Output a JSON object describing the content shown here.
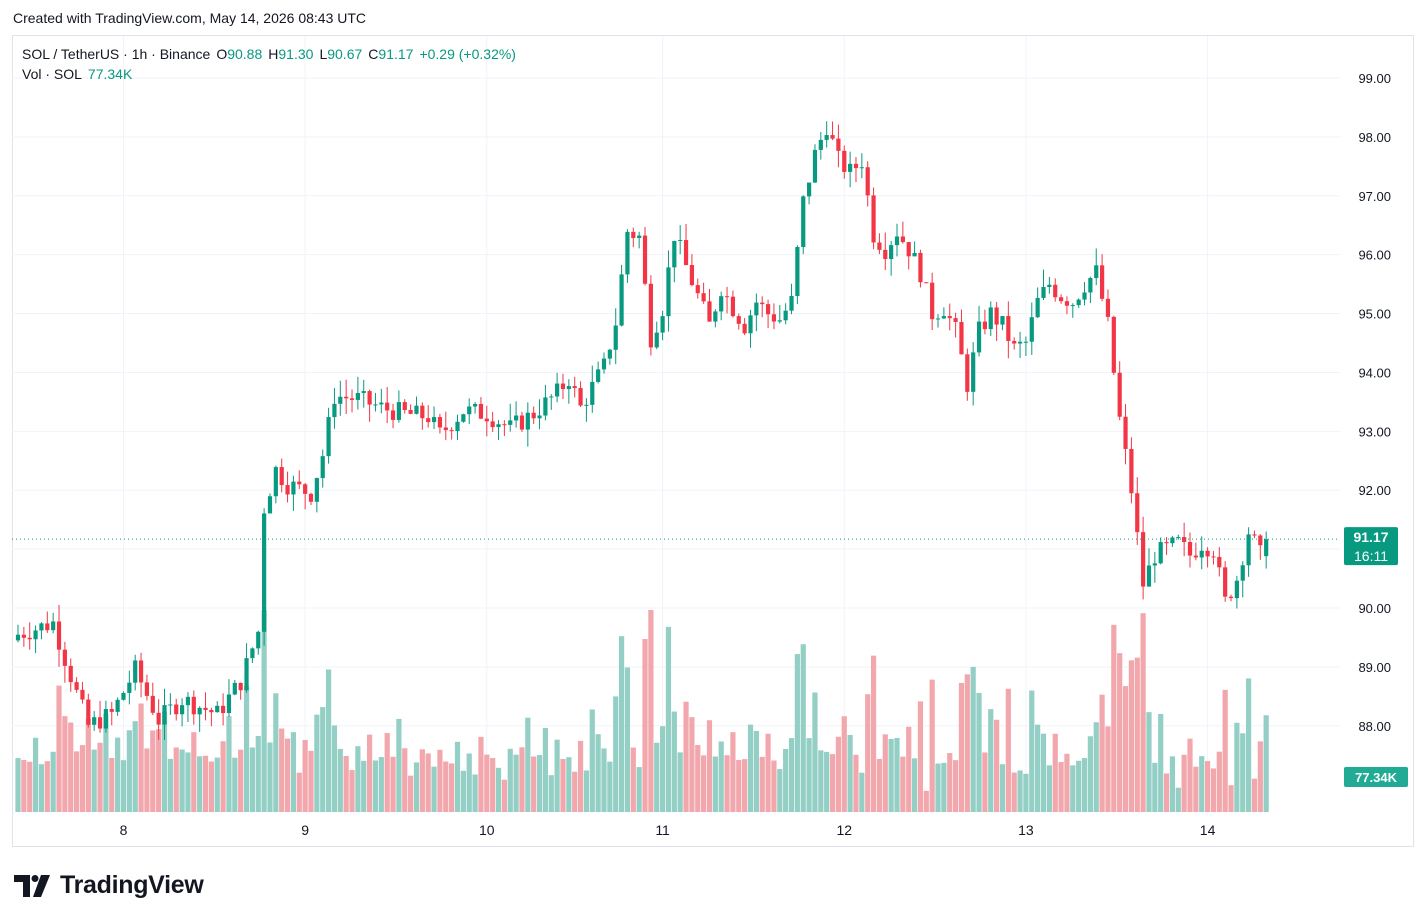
{
  "header_note": "Created with TradingView.com, May 14, 2026 08:43 UTC",
  "legend": {
    "symbol": "SOL / TetherUS · 1h · Binance",
    "open_label": "O",
    "open": "90.88",
    "high_label": "H",
    "high": "91.30",
    "low_label": "L",
    "low": "90.67",
    "close_label": "C",
    "close": "91.17",
    "change": "+0.29 (+0.32%)",
    "vol_label": "Vol · SOL",
    "vol_value": "77.34K"
  },
  "price_badge": {
    "price": "91.17",
    "countdown": "16:11"
  },
  "volume_badge": "77.34K",
  "brand": "TradingView",
  "colors": {
    "up": "#089981",
    "down": "#f23645",
    "up_volume": "#94cfc5",
    "down_volume": "#f2a7ad",
    "grid": "#f0f3fa",
    "badge": "#089981"
  },
  "chart_data": {
    "type": "candlestick",
    "symbol": "SOL / TetherUS",
    "interval": "1h",
    "y_ticks": [
      "99.00",
      "98.00",
      "97.00",
      "96.00",
      "95.00",
      "94.00",
      "93.00",
      "92.00",
      "91.00",
      "90.00",
      "89.00",
      "88.00"
    ],
    "x_ticks": [
      "8",
      "9",
      "10",
      "11",
      "12",
      "13",
      "14"
    ],
    "ylim": [
      87,
      99.6
    ],
    "last_price": 91.17,
    "close_path": [
      {
        "x": 0,
        "c": 89.55
      },
      {
        "x": 6,
        "c": 89.75
      },
      {
        "x": 10,
        "c": 88.55
      },
      {
        "x": 12,
        "c": 88.0
      },
      {
        "x": 16,
        "c": 88.2
      },
      {
        "x": 20,
        "c": 88.95
      },
      {
        "x": 24,
        "c": 88.1
      },
      {
        "x": 28,
        "c": 88.45
      },
      {
        "x": 34,
        "c": 88.2
      },
      {
        "x": 38,
        "c": 88.75
      },
      {
        "x": 41,
        "c": 89.6
      },
      {
        "x": 42,
        "c": 91.7
      },
      {
        "x": 44,
        "c": 92.35
      },
      {
        "x": 46,
        "c": 92.1
      },
      {
        "x": 50,
        "c": 91.95
      },
      {
        "x": 52,
        "c": 92.6
      },
      {
        "x": 54,
        "c": 93.6
      },
      {
        "x": 58,
        "c": 93.55
      },
      {
        "x": 62,
        "c": 93.4
      },
      {
        "x": 66,
        "c": 93.3
      },
      {
        "x": 70,
        "c": 93.25
      },
      {
        "x": 72,
        "c": 92.95
      },
      {
        "x": 76,
        "c": 93.35
      },
      {
        "x": 80,
        "c": 93.3
      },
      {
        "x": 84,
        "c": 93.05
      },
      {
        "x": 88,
        "c": 93.3
      },
      {
        "x": 92,
        "c": 93.65
      },
      {
        "x": 94,
        "c": 93.9
      },
      {
        "x": 96,
        "c": 93.4
      },
      {
        "x": 100,
        "c": 94.1
      },
      {
        "x": 102,
        "c": 94.85
      },
      {
        "x": 104,
        "c": 96.4
      },
      {
        "x": 106,
        "c": 96.3
      },
      {
        "x": 108,
        "c": 94.6
      },
      {
        "x": 110,
        "c": 95.1
      },
      {
        "x": 112,
        "c": 96.35
      },
      {
        "x": 114,
        "c": 95.8
      },
      {
        "x": 116,
        "c": 95.3
      },
      {
        "x": 118,
        "c": 94.8
      },
      {
        "x": 120,
        "c": 95.45
      },
      {
        "x": 122,
        "c": 95.1
      },
      {
        "x": 124,
        "c": 94.8
      },
      {
        "x": 126,
        "c": 95.2
      },
      {
        "x": 128,
        "c": 95.0
      },
      {
        "x": 130,
        "c": 94.9
      },
      {
        "x": 132,
        "c": 95.2
      },
      {
        "x": 134,
        "c": 96.9
      },
      {
        "x": 136,
        "c": 97.7
      },
      {
        "x": 138,
        "c": 98.2
      },
      {
        "x": 140,
        "c": 97.6
      },
      {
        "x": 142,
        "c": 97.4
      },
      {
        "x": 144,
        "c": 97.6
      },
      {
        "x": 146,
        "c": 96.35
      },
      {
        "x": 148,
        "c": 96.1
      },
      {
        "x": 150,
        "c": 96.4
      },
      {
        "x": 152,
        "c": 96.1
      },
      {
        "x": 154,
        "c": 95.7
      },
      {
        "x": 156,
        "c": 95.0
      },
      {
        "x": 158,
        "c": 95.1
      },
      {
        "x": 160,
        "c": 94.7
      },
      {
        "x": 162,
        "c": 93.8
      },
      {
        "x": 164,
        "c": 94.7
      },
      {
        "x": 166,
        "c": 95.0
      },
      {
        "x": 168,
        "c": 94.8
      },
      {
        "x": 170,
        "c": 94.4
      },
      {
        "x": 172,
        "c": 94.5
      },
      {
        "x": 174,
        "c": 95.2
      },
      {
        "x": 176,
        "c": 95.5
      },
      {
        "x": 178,
        "c": 95.3
      },
      {
        "x": 180,
        "c": 95.2
      },
      {
        "x": 182,
        "c": 95.5
      },
      {
        "x": 184,
        "c": 95.7
      },
      {
        "x": 186,
        "c": 94.8
      },
      {
        "x": 188,
        "c": 93.2
      },
      {
        "x": 190,
        "c": 92.0
      },
      {
        "x": 192,
        "c": 90.4
      },
      {
        "x": 194,
        "c": 90.9
      },
      {
        "x": 196,
        "c": 91.0
      },
      {
        "x": 198,
        "c": 91.1
      },
      {
        "x": 200,
        "c": 90.9
      },
      {
        "x": 202,
        "c": 91.1
      },
      {
        "x": 204,
        "c": 91.0
      },
      {
        "x": 206,
        "c": 90.1
      },
      {
        "x": 208,
        "c": 90.5
      },
      {
        "x": 210,
        "c": 91.3
      },
      {
        "x": 212,
        "c": 90.9
      },
      {
        "x": 213,
        "c": 91.17
      }
    ],
    "volume_ylim": [
      0,
      200
    ]
  }
}
